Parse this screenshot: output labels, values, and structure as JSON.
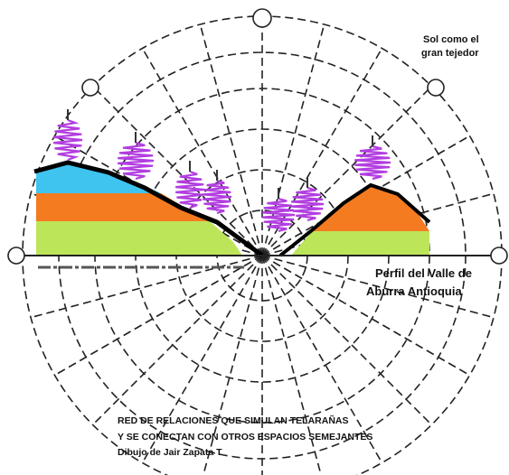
{
  "sun_note": {
    "line1": "Sol como el",
    "line2": "gran tejedor"
  },
  "profile_note": {
    "line1": "Perfil del Valle de",
    "line2": "Aburra Antioquia"
  },
  "caption": {
    "line1": "RED DE RELACIONES QUE SIMULAN TELARAÑAS",
    "line2": "Y SE CONECTAN CON OTROS ESPACIOS SEMEJANTES",
    "line3": "Dibujo de Jair Zapata T"
  }
}
